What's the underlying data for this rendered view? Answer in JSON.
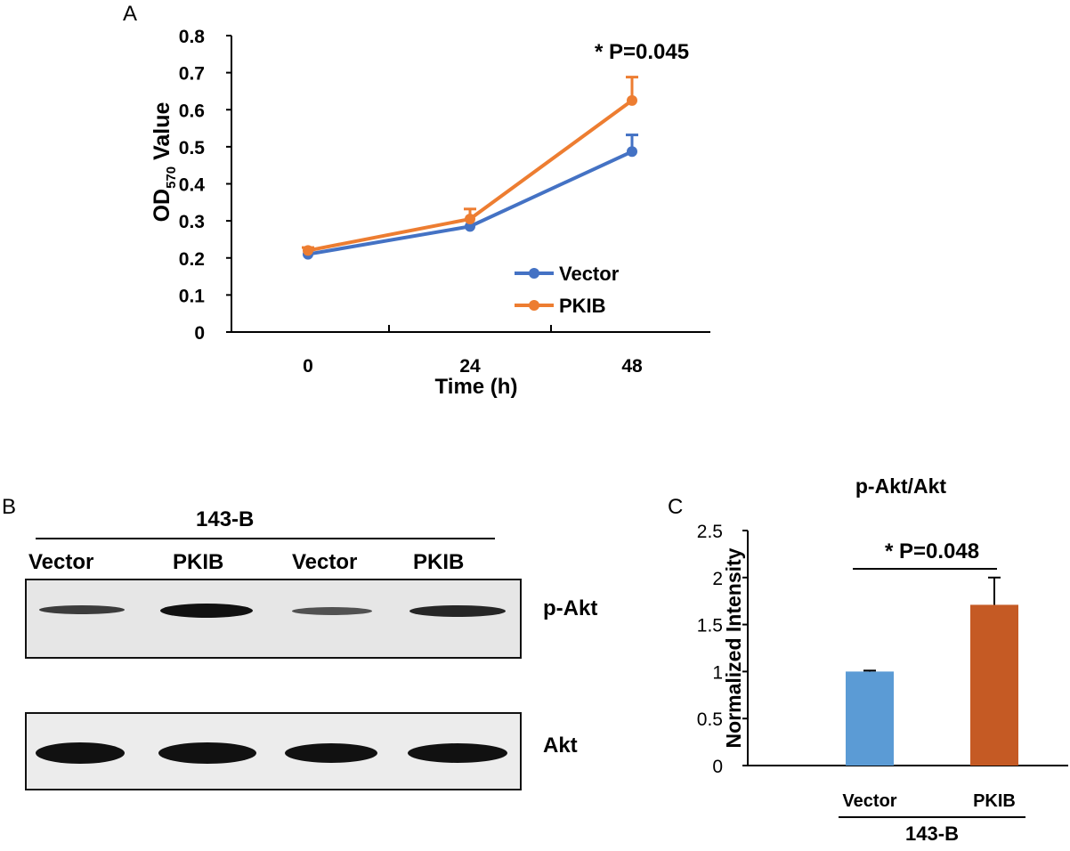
{
  "panels": {
    "a": "A",
    "b": "B",
    "c": "C"
  },
  "chart_data": [
    {
      "type": "line",
      "annotation": "* P=0.045",
      "xlabel": "Time (h)",
      "ylabel_main": "OD",
      "ylabel_sub": "570",
      "ylabel_tail": " Value",
      "categories": [
        "0",
        "24",
        "48"
      ],
      "ylim": [
        0,
        0.8
      ],
      "yticks": [
        "0",
        "0.1",
        "0.2",
        "0.3",
        "0.4",
        "0.5",
        "0.6",
        "0.7",
        "0.8"
      ],
      "legend_position": "lower-right",
      "series": [
        {
          "name": "Vector",
          "color": "#4472C4",
          "values": [
            0.21,
            0.285,
            0.487
          ],
          "errors": [
            0.0,
            0.0,
            0.045
          ]
        },
        {
          "name": "PKIB",
          "color": "#ED7D31",
          "values": [
            0.22,
            0.305,
            0.625
          ],
          "errors": [
            0.008,
            0.027,
            0.063
          ]
        }
      ]
    },
    {
      "type": "bar",
      "title": "p-Akt/Akt",
      "ylabel": "Normalized Intensity",
      "annotation": "* P=0.048",
      "group_label": "143-B",
      "categories": [
        "Vector",
        "PKIB"
      ],
      "values": [
        1.0,
        1.71
      ],
      "errors": [
        0.01,
        0.29
      ],
      "colors": [
        "#5B9BD5",
        "#C55A24"
      ],
      "ylim": [
        0,
        2.5
      ],
      "yticks": [
        "0",
        "0.5",
        "1",
        "1.5",
        "2",
        "2.5"
      ]
    }
  ],
  "blot": {
    "title": "143-B",
    "lanes": [
      "Vector",
      "PKIB",
      "Vector",
      "PKIB"
    ],
    "rows": [
      {
        "label": "p-Akt",
        "intensity": [
          0.45,
          1.0,
          0.35,
          0.85
        ]
      },
      {
        "label": "Akt",
        "intensity": [
          1.0,
          1.0,
          0.95,
          0.95
        ]
      }
    ]
  }
}
